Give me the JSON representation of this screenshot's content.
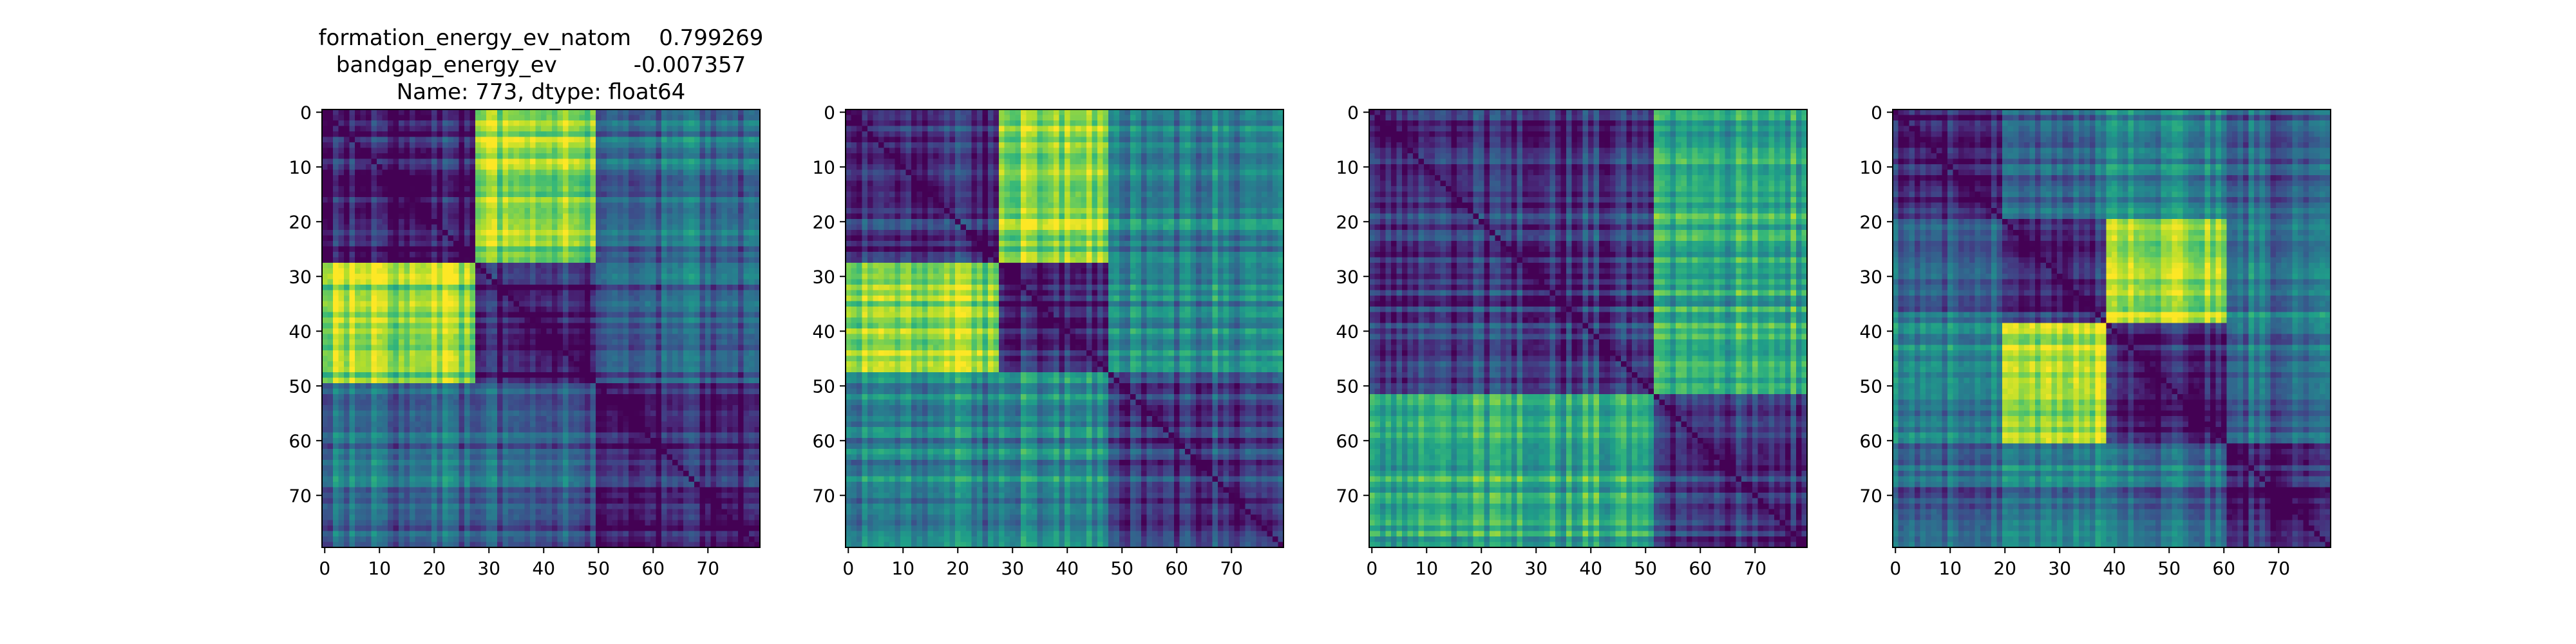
{
  "figure": {
    "title_lines": [
      "formation_energy_ev_natom    0.799269",
      "bandgap_energy_ev           -0.007357",
      "Name: 773, dtype: float64"
    ]
  },
  "chart_data": [
    {
      "type": "heatmap",
      "size": 80,
      "colormap": "viridis",
      "block_boundaries": [
        0,
        28,
        50,
        80
      ],
      "block_levels": [
        [
          0.1,
          0.85,
          0.35
        ],
        [
          0.85,
          0.1,
          0.3
        ],
        [
          0.35,
          0.3,
          0.1
        ]
      ],
      "xticks": [
        0,
        10,
        20,
        30,
        40,
        50,
        60,
        70
      ],
      "yticks": [
        0,
        10,
        20,
        30,
        40,
        50,
        60,
        70
      ],
      "xlim": [
        0,
        80
      ],
      "ylim": [
        80,
        0
      ],
      "title": [
        "formation_energy_ev_natom    0.799269",
        "bandgap_energy_ev           -0.007357",
        "Name: 773, dtype: float64"
      ]
    },
    {
      "type": "heatmap",
      "size": 80,
      "colormap": "viridis",
      "block_boundaries": [
        0,
        28,
        48,
        80
      ],
      "block_levels": [
        [
          0.15,
          0.85,
          0.45
        ],
        [
          0.85,
          0.15,
          0.5
        ],
        [
          0.45,
          0.5,
          0.2
        ]
      ],
      "xticks": [
        0,
        10,
        20,
        30,
        40,
        50,
        60,
        70
      ],
      "yticks": [
        0,
        10,
        20,
        30,
        40,
        50,
        60,
        70
      ],
      "xlim": [
        0,
        80
      ],
      "ylim": [
        80,
        0
      ]
    },
    {
      "type": "heatmap",
      "size": 80,
      "colormap": "viridis",
      "block_boundaries": [
        0,
        52,
        80
      ],
      "block_levels": [
        [
          0.15,
          0.6
        ],
        [
          0.6,
          0.15
        ]
      ],
      "xticks": [
        0,
        10,
        20,
        30,
        40,
        50,
        60,
        70
      ],
      "yticks": [
        0,
        10,
        20,
        30,
        40,
        50,
        60,
        70
      ],
      "xlim": [
        0,
        80
      ],
      "ylim": [
        80,
        0
      ]
    },
    {
      "type": "heatmap",
      "size": 80,
      "colormap": "viridis",
      "block_boundaries": [
        0,
        20,
        39,
        61,
        80
      ],
      "block_levels": [
        [
          0.1,
          0.3,
          0.45,
          0.3
        ],
        [
          0.3,
          0.1,
          0.85,
          0.4
        ],
        [
          0.45,
          0.85,
          0.1,
          0.35
        ],
        [
          0.3,
          0.4,
          0.35,
          0.1
        ]
      ],
      "xticks": [
        0,
        10,
        20,
        30,
        40,
        50,
        60,
        70
      ],
      "yticks": [
        0,
        10,
        20,
        30,
        40,
        50,
        60,
        70
      ],
      "xlim": [
        0,
        80
      ],
      "ylim": [
        80,
        0
      ]
    }
  ]
}
